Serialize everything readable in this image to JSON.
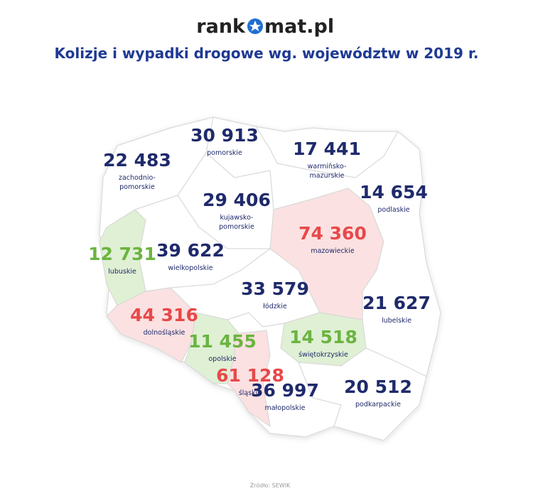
{
  "logo": {
    "left": "rank",
    "right": "mat.pl"
  },
  "title": "Kolizje i wypadki drogowe wg. województw w 2019 r.",
  "regions": [
    {
      "value": "30 913",
      "name": [
        "pomorskie"
      ],
      "color": "#1f2a6b"
    },
    {
      "value": "22 483",
      "name": [
        "zachodnio-",
        "pomorskie"
      ],
      "color": "#1f2a6b"
    },
    {
      "value": "17 441",
      "name": [
        "warmińsko-",
        "mazurskie"
      ],
      "color": "#1f2a6b"
    },
    {
      "value": "14 654",
      "name": [
        "podlaskie"
      ],
      "color": "#1f2a6b"
    },
    {
      "value": "29 406",
      "name": [
        "kujawsko-",
        "pomorskie"
      ],
      "color": "#1f2a6b"
    },
    {
      "value": "74 360",
      "name": [
        "mazowieckie"
      ],
      "color": "#e8484a"
    },
    {
      "value": "12 731",
      "name": [
        "lubuskie"
      ],
      "color": "#6bb43f"
    },
    {
      "value": "39 622",
      "name": [
        "wielkopolskie"
      ],
      "color": "#1f2a6b"
    },
    {
      "value": "33 579",
      "name": [
        "łódzkie"
      ],
      "color": "#1f2a6b"
    },
    {
      "value": "21 627",
      "name": [
        "lubelskie"
      ],
      "color": "#1f2a6b"
    },
    {
      "value": "44 316",
      "name": [
        "dolnośląskie"
      ],
      "color": "#e8484a"
    },
    {
      "value": "11 455",
      "name": [
        "opolskie"
      ],
      "color": "#6bb43f"
    },
    {
      "value": "14 518",
      "name": [
        "świętokrzyskie"
      ],
      "color": "#6bb43f"
    },
    {
      "value": "61 128",
      "name": [
        "śląskie"
      ],
      "color": "#e8484a"
    },
    {
      "value": "36 997",
      "name": [
        "małopolskie"
      ],
      "color": "#1f2a6b"
    },
    {
      "value": "20 512",
      "name": [
        "podkarpackie"
      ],
      "color": "#1f2a6b"
    }
  ],
  "source": "Źródło: SEWIK"
}
